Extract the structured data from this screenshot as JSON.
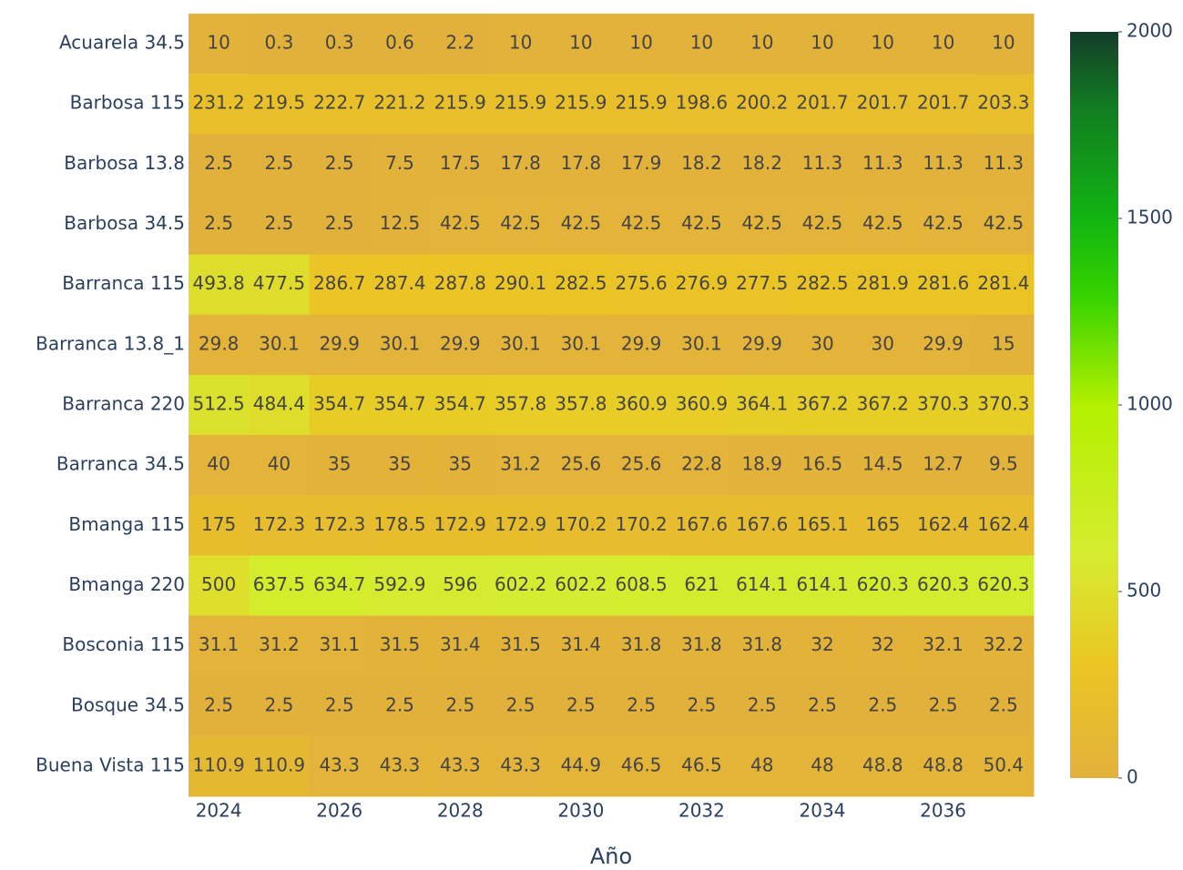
{
  "chart_data": {
    "type": "heatmap",
    "x_label": "Año",
    "x": [
      2024,
      2025,
      2026,
      2027,
      2028,
      2029,
      2030,
      2031,
      2032,
      2033,
      2034,
      2035,
      2036,
      2037
    ],
    "xlim": [
      2023.5,
      2037.5
    ],
    "xticks": [
      2024,
      2026,
      2028,
      2030,
      2032,
      2034,
      2036
    ],
    "categories": [
      "Acuarela 34.5",
      "Barbosa 115",
      "Barbosa 13.8",
      "Barbosa 34.5",
      "Barranca 115",
      "Barranca 13.8_1",
      "Barranca 220",
      "Barranca 34.5",
      "Bmanga 115",
      "Bmanga 220",
      "Bosconia 115",
      "Bosque 34.5",
      "Buena Vista 115"
    ],
    "z": [
      [
        10,
        0.3,
        0.3,
        0.6,
        2.2,
        10,
        10,
        10,
        10,
        10,
        10,
        10,
        10,
        10
      ],
      [
        231.2,
        219.5,
        222.7,
        221.2,
        215.9,
        215.9,
        215.9,
        215.9,
        198.6,
        200.2,
        201.7,
        201.7,
        201.7,
        203.3
      ],
      [
        2.5,
        2.5,
        2.5,
        7.5,
        17.5,
        17.8,
        17.8,
        17.9,
        18.2,
        18.2,
        11.3,
        11.3,
        11.3,
        11.3
      ],
      [
        2.5,
        2.5,
        2.5,
        12.5,
        42.5,
        42.5,
        42.5,
        42.5,
        42.5,
        42.5,
        42.5,
        42.5,
        42.5,
        42.5
      ],
      [
        493.8,
        477.5,
        286.7,
        287.4,
        287.8,
        290.1,
        282.5,
        275.6,
        276.9,
        277.5,
        282.5,
        281.9,
        281.6,
        281.4
      ],
      [
        29.8,
        30.1,
        29.9,
        30.1,
        29.9,
        30.1,
        30.1,
        29.9,
        30.1,
        29.9,
        30,
        30,
        29.9,
        15
      ],
      [
        512.5,
        484.4,
        354.7,
        354.7,
        354.7,
        357.8,
        357.8,
        360.9,
        360.9,
        364.1,
        367.2,
        367.2,
        370.3,
        370.3
      ],
      [
        40,
        40,
        35,
        35,
        35,
        31.2,
        25.6,
        25.6,
        22.8,
        18.9,
        16.5,
        14.5,
        12.7,
        9.5
      ],
      [
        175,
        172.3,
        172.3,
        178.5,
        172.9,
        172.9,
        170.2,
        170.2,
        167.6,
        167.6,
        165.1,
        165,
        162.4,
        162.4
      ],
      [
        500,
        637.5,
        634.7,
        592.9,
        596,
        602.2,
        602.2,
        608.5,
        621,
        614.1,
        614.1,
        620.3,
        620.3,
        620.3
      ],
      [
        31.1,
        31.2,
        31.1,
        31.5,
        31.4,
        31.5,
        31.4,
        31.8,
        31.8,
        31.8,
        32,
        32,
        32.1,
        32.2
      ],
      [
        2.5,
        2.5,
        2.5,
        2.5,
        2.5,
        2.5,
        2.5,
        2.5,
        2.5,
        2.5,
        2.5,
        2.5,
        2.5,
        2.5
      ],
      [
        110.9,
        110.9,
        43.3,
        43.3,
        43.3,
        43.3,
        44.9,
        46.5,
        46.5,
        48,
        48,
        48.8,
        48.8,
        50.4
      ]
    ],
    "zlim": [
      0,
      2000
    ],
    "zticks": [
      0,
      500,
      1000,
      1500,
      2000
    ],
    "colorscale": [
      [
        0,
        "#e2b13c"
      ],
      [
        0.15,
        "#ebc524"
      ],
      [
        0.3,
        "#d6ec30"
      ],
      [
        0.5,
        "#b2f000"
      ],
      [
        0.65,
        "#34d200"
      ],
      [
        0.75,
        "#12b412"
      ],
      [
        0.9,
        "#127c22"
      ],
      [
        1,
        "#143d2a"
      ]
    ]
  }
}
